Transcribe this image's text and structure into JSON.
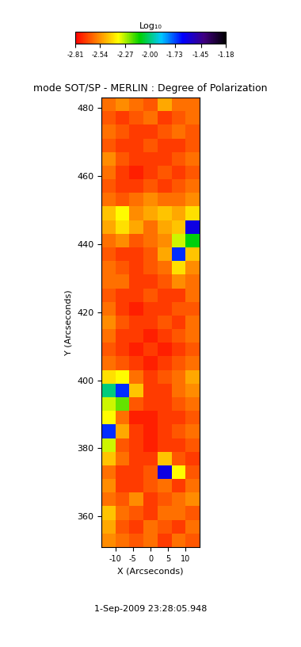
{
  "chart_data": {
    "type": "heatmap",
    "title": "mode SOT/SP - MERLIN : Degree of Polarization",
    "x_label": "X (Arcseconds)",
    "y_label": "Y (Arcseconds)",
    "annotation": "1-Sep-2009 23:28:05.948",
    "xlim": [
      -14,
      14
    ],
    "ylim": [
      351,
      483
    ],
    "xticks": [
      -10,
      -5,
      0,
      5,
      10
    ],
    "yticks": [
      360,
      380,
      400,
      420,
      440,
      460,
      480
    ],
    "grid": false,
    "x_edges": [
      -14,
      -10,
      -6,
      -2,
      2,
      6,
      10,
      14
    ],
    "y_edges": [
      351,
      355,
      359,
      363,
      367,
      371,
      375,
      379,
      383,
      387,
      391,
      395,
      399,
      403,
      407,
      411,
      415,
      419,
      423,
      427,
      431,
      435,
      439,
      443,
      447,
      451,
      455,
      459,
      463,
      467,
      471,
      475,
      479,
      483
    ],
    "cells": [
      [
        -2.55,
        -2.6,
        -2.65,
        -2.6,
        -2.7,
        -2.6,
        -2.65
      ],
      [
        -2.5,
        -2.65,
        -2.7,
        -2.6,
        -2.65,
        -2.7,
        -2.6
      ],
      [
        -2.45,
        -2.6,
        -2.65,
        -2.7,
        -2.6,
        -2.6,
        -2.65
      ],
      [
        -2.6,
        -2.65,
        -2.55,
        -2.7,
        -2.65,
        -2.6,
        -2.55
      ],
      [
        -2.55,
        -2.7,
        -2.7,
        -2.65,
        -2.6,
        -2.7,
        -2.6
      ],
      [
        -2.6,
        -2.7,
        -2.7,
        -2.65,
        -1.6,
        -2.35,
        -2.65
      ],
      [
        -2.45,
        -2.6,
        -2.7,
        -2.7,
        -2.45,
        -2.65,
        -2.7
      ],
      [
        -2.3,
        -2.65,
        -2.7,
        -2.75,
        -2.7,
        -2.7,
        -2.65
      ],
      [
        -1.7,
        -2.5,
        -2.7,
        -2.75,
        -2.7,
        -2.65,
        -2.6
      ],
      [
        -2.35,
        -2.6,
        -2.75,
        -2.75,
        -2.7,
        -2.7,
        -2.65
      ],
      [
        -2.3,
        -2.2,
        -2.65,
        -2.7,
        -2.7,
        -2.65,
        -2.6
      ],
      [
        -2.0,
        -1.7,
        -2.45,
        -2.7,
        -2.7,
        -2.6,
        -2.55
      ],
      [
        -2.4,
        -2.35,
        -2.6,
        -2.7,
        -2.65,
        -2.6,
        -2.5
      ],
      [
        -2.6,
        -2.65,
        -2.7,
        -2.75,
        -2.7,
        -2.65,
        -2.6
      ],
      [
        -2.65,
        -2.7,
        -2.75,
        -2.7,
        -2.75,
        -2.7,
        -2.65
      ],
      [
        -2.6,
        -2.7,
        -2.7,
        -2.75,
        -2.7,
        -2.65,
        -2.6
      ],
      [
        -2.55,
        -2.65,
        -2.7,
        -2.7,
        -2.65,
        -2.7,
        -2.6
      ],
      [
        -2.6,
        -2.7,
        -2.75,
        -2.7,
        -2.7,
        -2.65,
        -2.65
      ],
      [
        -2.65,
        -2.7,
        -2.7,
        -2.65,
        -2.7,
        -2.7,
        -2.6
      ],
      [
        -2.6,
        -2.6,
        -2.7,
        -2.7,
        -2.65,
        -2.55,
        -2.6
      ],
      [
        -2.6,
        -2.65,
        -2.7,
        -2.65,
        -2.6,
        -2.4,
        -2.55
      ],
      [
        -2.65,
        -2.7,
        -2.7,
        -2.65,
        -2.5,
        -1.7,
        -2.45
      ],
      [
        -2.6,
        -2.55,
        -2.65,
        -2.6,
        -2.55,
        -2.3,
        -2.1
      ],
      [
        -2.5,
        -2.4,
        -2.5,
        -2.6,
        -2.5,
        -2.45,
        -1.6
      ],
      [
        -2.45,
        -2.35,
        -2.55,
        -2.5,
        -2.45,
        -2.5,
        -2.4
      ],
      [
        -2.6,
        -2.65,
        -2.6,
        -2.55,
        -2.6,
        -2.6,
        -2.55
      ],
      [
        -2.65,
        -2.7,
        -2.7,
        -2.65,
        -2.7,
        -2.65,
        -2.6
      ],
      [
        -2.6,
        -2.7,
        -2.75,
        -2.7,
        -2.65,
        -2.7,
        -2.65
      ],
      [
        -2.55,
        -2.65,
        -2.7,
        -2.7,
        -2.7,
        -2.65,
        -2.6
      ],
      [
        -2.65,
        -2.7,
        -2.7,
        -2.65,
        -2.7,
        -2.7,
        -2.65
      ],
      [
        -2.6,
        -2.65,
        -2.7,
        -2.7,
        -2.65,
        -2.6,
        -2.65
      ],
      [
        -2.65,
        -2.7,
        -2.65,
        -2.6,
        -2.7,
        -2.65,
        -2.6
      ],
      [
        -2.6,
        -2.55,
        -2.6,
        -2.65,
        -2.5,
        -2.6,
        -2.6
      ]
    ],
    "colorbar_title": "Log₁₀",
    "colorbar_range": [
      -2.81,
      -1.18
    ],
    "colorbar_ticks": [
      -2.81,
      -2.54,
      -2.27,
      {
        "value": -2.0,
        "label": "-2.00"
      },
      -1.73,
      -1.45,
      -1.18
    ]
  }
}
